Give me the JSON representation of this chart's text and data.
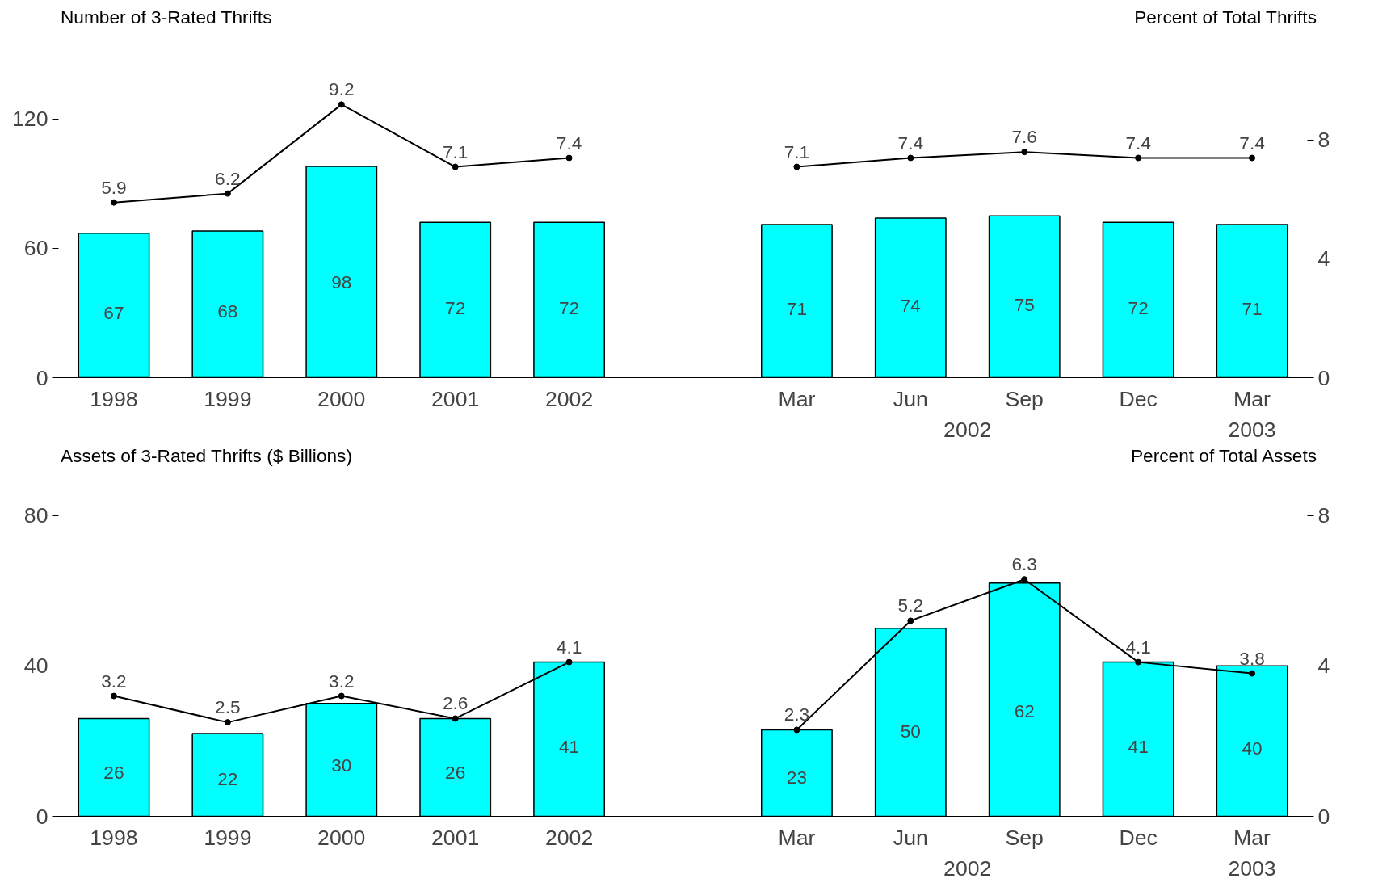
{
  "chart_data": [
    {
      "type": "bar",
      "ylabel": "Number of 3-Rated Thrifts",
      "y2label": "Percent of Total Thrifts",
      "categories": [
        "1998",
        "1999",
        "2000",
        "2001",
        "2002",
        null,
        "Mar",
        "Jun",
        "Sep",
        "Dec",
        "Mar"
      ],
      "series": [
        {
          "color": "#00ffff",
          "values": [
            67,
            68,
            98,
            72,
            72,
            null,
            71,
            74,
            75,
            72,
            71
          ]
        },
        {
          "type": "line",
          "axis": "y2",
          "color": "#000000",
          "values": [
            5.9,
            6.2,
            9.2,
            7.1,
            7.4,
            null,
            7.1,
            7.4,
            7.6,
            7.4,
            7.4
          ]
        }
      ],
      "ylim": [
        0,
        157
      ],
      "yticks": [
        0,
        60,
        120
      ],
      "y2lim": [
        0,
        11.4
      ],
      "y2ticks": [
        0,
        4,
        8
      ],
      "data_labels": true,
      "marker": "circle",
      "annotations": [
        "2002",
        "2003"
      ]
    },
    {
      "type": "bar",
      "ylabel": "Assets of 3-Rated Thrifts ($ Billions)",
      "y2label": "Percent of Total Assets",
      "categories": [
        "1998",
        "1999",
        "2000",
        "2001",
        "2002",
        null,
        "Mar",
        "Jun",
        "Sep",
        "Dec",
        "Mar"
      ],
      "series": [
        {
          "color": "#00ffff",
          "values": [
            26,
            22,
            30,
            26,
            41,
            null,
            23,
            50,
            62,
            41,
            40
          ]
        },
        {
          "type": "line",
          "axis": "y2",
          "color": "#000000",
          "values": [
            3.2,
            2.5,
            3.2,
            2.6,
            4.1,
            null,
            2.3,
            5.2,
            6.3,
            4.1,
            3.8
          ]
        }
      ],
      "ylim": [
        0,
        90
      ],
      "yticks": [
        0,
        40,
        80
      ],
      "y2lim": [
        0,
        9
      ],
      "y2ticks": [
        0,
        4,
        8
      ],
      "data_labels": true,
      "marker": "circle",
      "annotations": [
        "2002",
        "2003"
      ]
    }
  ]
}
